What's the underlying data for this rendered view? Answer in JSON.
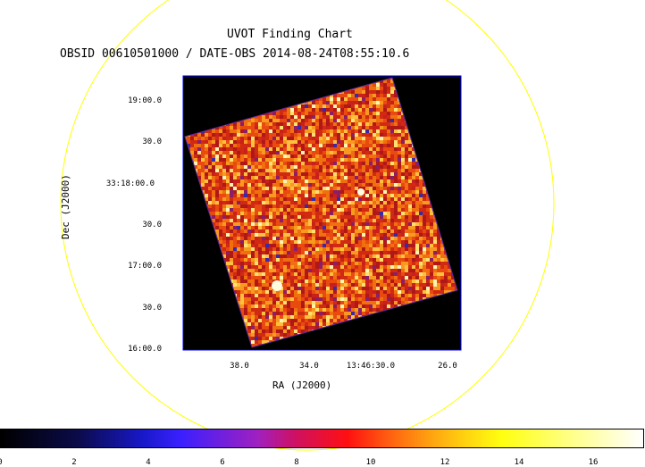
{
  "title": {
    "line1": "UVOT Finding Chart",
    "line2": "OBSID 00610501000 / DATE-OBS 2014-08-24T08:55:10.6"
  },
  "axes": {
    "xlabel": "RA (J2000)",
    "ylabel": "Dec (J2000)",
    "yticks": [
      "19:00.0",
      "30.0",
      "33:18:00.0",
      "30.0",
      "17:00.0",
      "30.0",
      "16:00.0"
    ],
    "xticks": [
      "38.0",
      "34.0",
      "13:46:30.0",
      "26.0"
    ]
  },
  "colorbar": {
    "ticks": [
      "0",
      "2",
      "4",
      "6",
      "8",
      "10",
      "12",
      "14",
      "16"
    ],
    "colormap": "heat"
  },
  "colors": {
    "circle": "#ffff00",
    "frame": "#0000ff",
    "background": "#000000"
  }
}
